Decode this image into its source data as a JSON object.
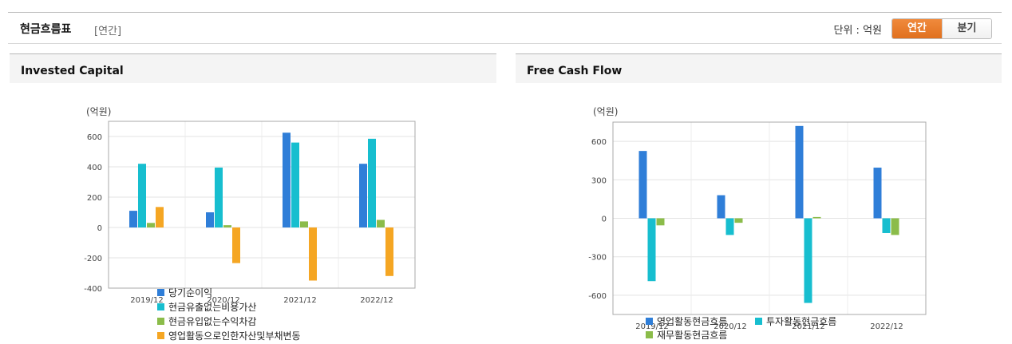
{
  "header": {
    "title": "현금흐름표",
    "period": "[연간]",
    "unit_label": "단위 : 억원",
    "toggle_annual": "연간",
    "toggle_quarter": "분기"
  },
  "panels": {
    "left_title": "Invested Capital",
    "right_title": "Free Cash Flow"
  },
  "chart_data": [
    {
      "type": "bar",
      "title": "Invested Capital",
      "unit": "(억원)",
      "categories": [
        "2019/12",
        "2020/12",
        "2021/12",
        "2022/12"
      ],
      "ylim": [
        -400,
        700
      ],
      "yticks": [
        600,
        400,
        200,
        0,
        -200,
        -400
      ],
      "grid": true,
      "legend_position": "bottom",
      "series": [
        {
          "name": "당기순이익",
          "color": "#2f7ed8",
          "values": [
            110,
            100,
            625,
            420
          ]
        },
        {
          "name": "현금유출없는비용가산",
          "color": "#17becf",
          "values": [
            420,
            395,
            560,
            585
          ]
        },
        {
          "name": "현금유입없는수익차감",
          "color": "#8bbc4a",
          "values": [
            30,
            15,
            40,
            50
          ]
        },
        {
          "name": "영업활동으로인한자산및부채변동",
          "color": "#f5a623",
          "values": [
            135,
            -235,
            -350,
            -320
          ]
        }
      ]
    },
    {
      "type": "bar",
      "title": "Free Cash Flow",
      "unit": "(억원)",
      "categories": [
        "2019/12",
        "2020/12",
        "2021/12",
        "2022/12"
      ],
      "ylim": [
        -750,
        750
      ],
      "yticks": [
        600,
        300,
        0,
        -300,
        -600
      ],
      "grid": true,
      "legend_position": "bottom",
      "series": [
        {
          "name": "영업활동현금흐름",
          "color": "#2f7ed8",
          "values": [
            525,
            180,
            720,
            395
          ]
        },
        {
          "name": "투자활동현금흐름",
          "color": "#17becf",
          "values": [
            -490,
            -130,
            -660,
            -115
          ]
        },
        {
          "name": "재무활동현금흐름",
          "color": "#8bbc4a",
          "values": [
            -55,
            -35,
            10,
            -130
          ]
        }
      ]
    }
  ]
}
